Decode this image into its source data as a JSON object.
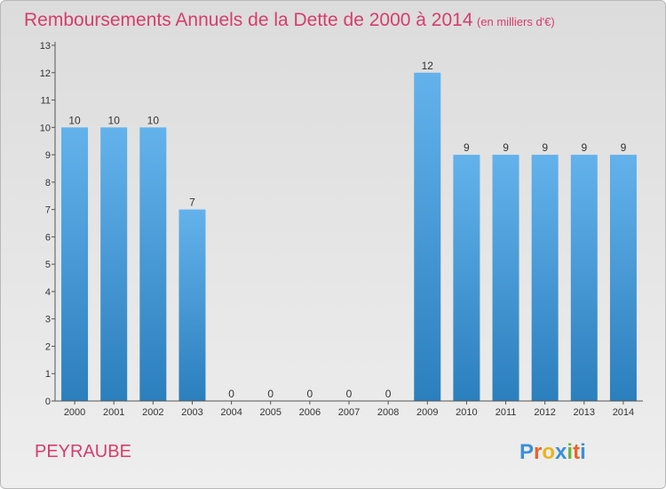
{
  "chart_data": {
    "type": "bar",
    "title": "Remboursements Annuels de la Dette de 2000 à 2014",
    "subtitle": "(en milliers d'€)",
    "categories": [
      "2000",
      "2001",
      "2002",
      "2003",
      "2004",
      "2005",
      "2006",
      "2007",
      "2008",
      "2009",
      "2010",
      "2011",
      "2012",
      "2013",
      "2014"
    ],
    "values": [
      10,
      10,
      10,
      7,
      0,
      0,
      0,
      0,
      0,
      12,
      9,
      9,
      9,
      9,
      9
    ],
    "ylim": [
      0,
      13
    ],
    "yticks": [
      0,
      1,
      2,
      3,
      4,
      5,
      6,
      7,
      8,
      9,
      10,
      11,
      12,
      13
    ],
    "grid": false,
    "bar_color": "#3a93d6"
  },
  "place": "PEYRAUBE",
  "logo": {
    "letters": [
      "P",
      "r",
      "o",
      "x",
      "i",
      "t",
      "i"
    ],
    "colors": [
      "#3a8fd8",
      "#e8642a",
      "#e8b41f",
      "#3a8fd8",
      "#6db33f",
      "#e8642a",
      "#3a8fd8"
    ]
  }
}
